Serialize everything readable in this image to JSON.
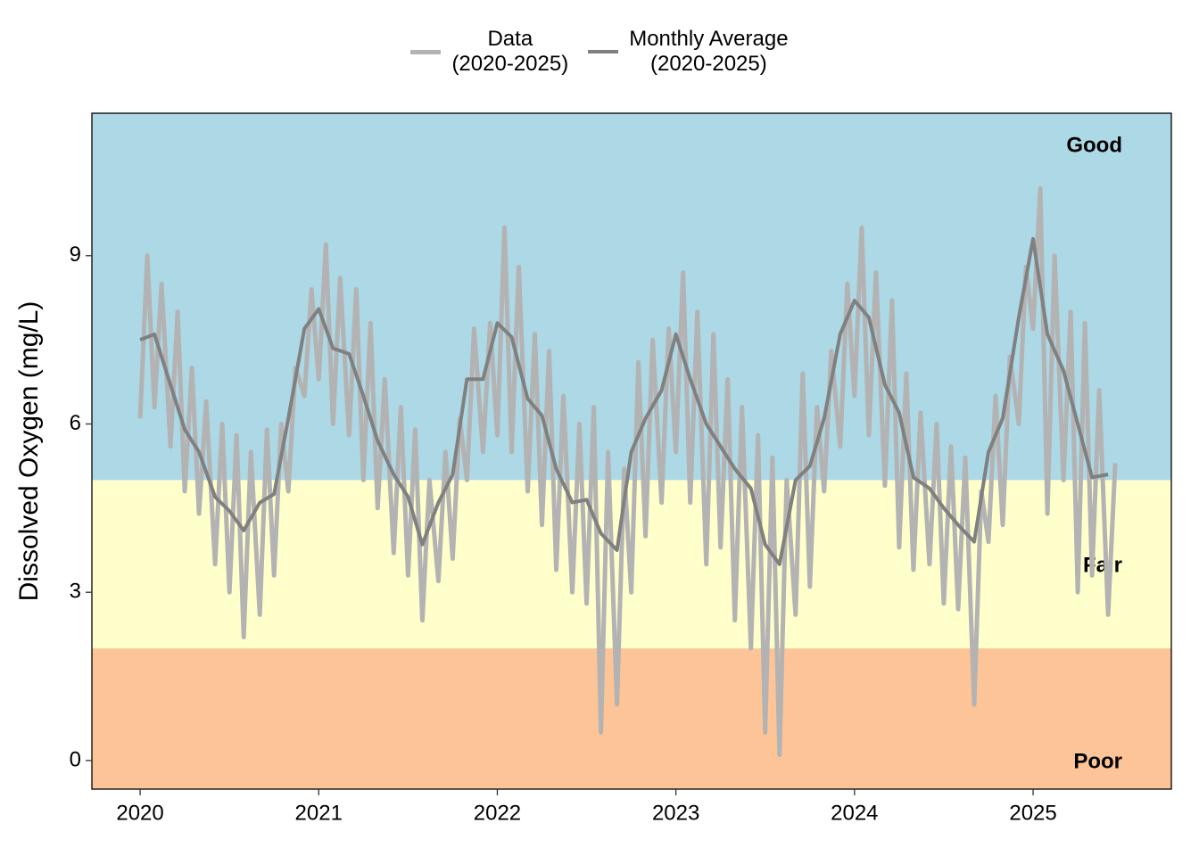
{
  "chart_data": {
    "type": "line",
    "ylabel": "Dissolved Oxygen (mg/L)",
    "xlim": [
      2019.73,
      2025.774
    ],
    "xticks": [
      2020,
      2021,
      2022,
      2023,
      2024,
      2025
    ],
    "ylim": [
      -0.51,
      11.54
    ],
    "yticks": [
      0,
      3,
      6,
      9
    ],
    "zones": [
      {
        "label": "Poor",
        "color": "#fdc597",
        "upper": 2
      },
      {
        "label": "Fair",
        "color": "#ffffcc",
        "lower": 2,
        "upper": 5
      },
      {
        "label": "Good",
        "color": "#add8e6",
        "lower": 5
      }
    ],
    "series": [
      {
        "name": "Data\n(2020-2025)",
        "color": "#b3b3b3",
        "x": [
          2020.0,
          2020.04,
          2020.08,
          2020.12,
          2020.17,
          2020.21,
          2020.25,
          2020.29,
          2020.33,
          2020.37,
          2020.42,
          2020.46,
          2020.5,
          2020.54,
          2020.58,
          2020.62,
          2020.67,
          2020.71,
          2020.75,
          2020.79,
          2020.83,
          2020.87,
          2020.92,
          2020.96,
          2021.0,
          2021.04,
          2021.08,
          2021.12,
          2021.17,
          2021.21,
          2021.25,
          2021.29,
          2021.33,
          2021.37,
          2021.42,
          2021.46,
          2021.5,
          2021.54,
          2021.58,
          2021.62,
          2021.67,
          2021.71,
          2021.75,
          2021.79,
          2021.83,
          2021.87,
          2021.92,
          2021.96,
          2022.0,
          2022.04,
          2022.08,
          2022.12,
          2022.17,
          2022.21,
          2022.25,
          2022.29,
          2022.33,
          2022.37,
          2022.42,
          2022.46,
          2022.5,
          2022.54,
          2022.58,
          2022.62,
          2022.67,
          2022.71,
          2022.75,
          2022.79,
          2022.83,
          2022.87,
          2022.92,
          2022.96,
          2023.0,
          2023.04,
          2023.08,
          2023.12,
          2023.17,
          2023.21,
          2023.25,
          2023.29,
          2023.33,
          2023.37,
          2023.42,
          2023.46,
          2023.5,
          2023.54,
          2023.58,
          2023.62,
          2023.67,
          2023.71,
          2023.75,
          2023.79,
          2023.83,
          2023.87,
          2023.92,
          2023.96,
          2024.0,
          2024.04,
          2024.08,
          2024.12,
          2024.17,
          2024.21,
          2024.25,
          2024.29,
          2024.33,
          2024.37,
          2024.42,
          2024.46,
          2024.5,
          2024.54,
          2024.58,
          2024.62,
          2024.67,
          2024.71,
          2024.75,
          2024.79,
          2024.83,
          2024.87,
          2024.92,
          2024.96,
          2025.0,
          2025.04,
          2025.08,
          2025.12,
          2025.17,
          2025.21,
          2025.25,
          2025.29,
          2025.33,
          2025.37,
          2025.42,
          2025.46
        ],
        "values": [
          6.1,
          9.0,
          6.3,
          8.5,
          5.6,
          8.0,
          4.8,
          7.0,
          4.4,
          6.4,
          3.5,
          6.0,
          3.0,
          5.8,
          2.2,
          5.5,
          2.6,
          5.9,
          3.3,
          6.0,
          4.8,
          7.0,
          6.5,
          8.4,
          6.8,
          9.2,
          6.0,
          8.6,
          5.8,
          8.4,
          5.0,
          7.8,
          4.5,
          6.8,
          3.7,
          6.3,
          3.3,
          5.9,
          2.5,
          5.0,
          3.2,
          5.5,
          3.6,
          6.1,
          5.0,
          7.7,
          5.5,
          7.8,
          5.8,
          9.5,
          5.5,
          8.8,
          4.8,
          7.6,
          4.2,
          7.3,
          3.4,
          6.5,
          3.0,
          6.0,
          2.8,
          6.3,
          0.5,
          5.5,
          1.0,
          5.2,
          3.0,
          7.1,
          4.0,
          7.5,
          4.6,
          7.7,
          5.5,
          8.7,
          4.6,
          8.0,
          3.5,
          7.6,
          3.8,
          6.8,
          2.5,
          6.3,
          2.0,
          5.8,
          0.5,
          5.4,
          0.1,
          5.0,
          2.6,
          6.9,
          3.1,
          6.3,
          4.8,
          7.3,
          5.6,
          8.5,
          6.5,
          9.5,
          5.8,
          8.7,
          4.9,
          8.2,
          3.8,
          6.9,
          3.4,
          6.2,
          3.5,
          6.0,
          2.8,
          5.6,
          2.7,
          5.4,
          1.0,
          4.8,
          3.9,
          6.5,
          4.2,
          7.2,
          6.0,
          8.8,
          7.7,
          10.2,
          4.4,
          9.0,
          5.0,
          8.0,
          3.0,
          7.8,
          3.3,
          6.6,
          2.6,
          5.3
        ]
      },
      {
        "name": "Monthly Average\n(2020-2025)",
        "color": "#808080",
        "x": [
          2020.0,
          2020.08,
          2020.17,
          2020.25,
          2020.33,
          2020.42,
          2020.5,
          2020.58,
          2020.67,
          2020.75,
          2020.83,
          2020.92,
          2021.0,
          2021.08,
          2021.17,
          2021.25,
          2021.33,
          2021.42,
          2021.5,
          2021.58,
          2021.67,
          2021.75,
          2021.83,
          2021.92,
          2022.0,
          2022.08,
          2022.17,
          2022.25,
          2022.33,
          2022.42,
          2022.5,
          2022.58,
          2022.67,
          2022.75,
          2022.83,
          2022.92,
          2023.0,
          2023.08,
          2023.17,
          2023.25,
          2023.33,
          2023.42,
          2023.5,
          2023.58,
          2023.67,
          2023.75,
          2023.83,
          2023.92,
          2024.0,
          2024.08,
          2024.17,
          2024.25,
          2024.33,
          2024.42,
          2024.5,
          2024.58,
          2024.67,
          2024.75,
          2024.83,
          2024.92,
          2025.0,
          2025.08,
          2025.17,
          2025.25,
          2025.33,
          2025.42
        ],
        "values": [
          7.5,
          7.6,
          6.7,
          5.9,
          5.5,
          4.7,
          4.45,
          4.1,
          4.6,
          4.75,
          6.1,
          7.7,
          8.05,
          7.35,
          7.25,
          6.5,
          5.7,
          5.1,
          4.7,
          3.85,
          4.6,
          5.1,
          6.8,
          6.8,
          7.8,
          7.55,
          6.45,
          6.15,
          5.2,
          4.6,
          4.65,
          4.05,
          3.75,
          5.5,
          6.1,
          6.6,
          7.6,
          6.8,
          6.0,
          5.6,
          5.2,
          4.85,
          3.85,
          3.5,
          5.0,
          5.25,
          6.1,
          7.6,
          8.2,
          7.9,
          6.7,
          6.2,
          5.05,
          4.85,
          4.5,
          4.2,
          3.9,
          5.5,
          6.1,
          7.9,
          9.3,
          7.6,
          6.95,
          6.0,
          5.05,
          5.1
        ]
      }
    ]
  }
}
